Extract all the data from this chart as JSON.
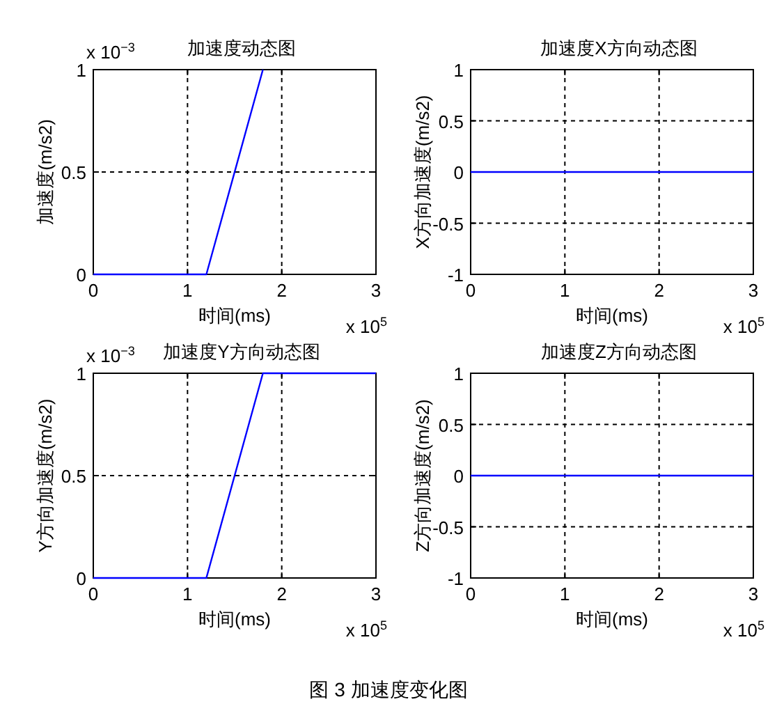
{
  "chart_data": [
    {
      "type": "line",
      "title": "加速度动态图",
      "xlabel": "时间(ms)",
      "ylabel": "加速度(m/s2)",
      "xlim": [
        0,
        3
      ],
      "xticks": [
        0,
        1,
        2,
        3
      ],
      "ylim": [
        0,
        1
      ],
      "yticks": [
        0,
        0.5,
        1
      ],
      "grid": true,
      "annotations": [
        "x 10$^{5}$",
        "x 10$^{−3}$"
      ],
      "series": [
        {
          "color": "#0000ff",
          "x": [
            0,
            1.2,
            1.8
          ],
          "values": [
            0,
            0,
            1
          ]
        }
      ]
    },
    {
      "type": "line",
      "title": "加速度X方向动态图",
      "xlabel": "时间(ms)",
      "ylabel": "X方向加速度(m/s2)",
      "xlim": [
        0,
        3
      ],
      "xticks": [
        0,
        1,
        2,
        3
      ],
      "ylim": [
        -1,
        1
      ],
      "yticks": [
        -1,
        -0.5,
        0,
        0.5,
        1
      ],
      "grid": true,
      "annotations": [
        "x 10$^{5}$"
      ],
      "series": [
        {
          "color": "#0000ff",
          "x": [
            0,
            3
          ],
          "values": [
            0,
            0
          ]
        }
      ]
    },
    {
      "type": "line",
      "title": "加速度Y方向动态图",
      "xlabel": "时间(ms)",
      "ylabel": "Y方向加速度(m/s2)",
      "xlim": [
        0,
        3
      ],
      "xticks": [
        0,
        1,
        2,
        3
      ],
      "ylim": [
        0,
        1
      ],
      "yticks": [
        0,
        0.5,
        1
      ],
      "grid": true,
      "annotations": [
        "x 10$^{5}$",
        "x 10$^{−3}$"
      ],
      "series": [
        {
          "color": "#0000ff",
          "x": [
            0,
            1.2,
            1.8,
            3
          ],
          "values": [
            0,
            0,
            1,
            1
          ]
        }
      ]
    },
    {
      "type": "line",
      "title": "加速度Z方向动态图",
      "xlabel": "时间(ms)",
      "ylabel": "Z方向加速度(m/s2)",
      "xlim": [
        0,
        3
      ],
      "xticks": [
        0,
        1,
        2,
        3
      ],
      "ylim": [
        -1,
        1
      ],
      "yticks": [
        -1,
        -0.5,
        0,
        0.5,
        1
      ],
      "grid": true,
      "annotations": [
        "x 10$^{5}$"
      ],
      "series": [
        {
          "color": "#0000ff",
          "x": [
            0,
            3
          ],
          "values": [
            0,
            0
          ]
        }
      ]
    },
    {
      "type": "other",
      "title": "图 3 加速度变化图"
    }
  ]
}
